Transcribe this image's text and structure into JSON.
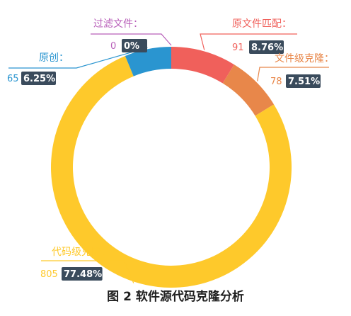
{
  "chart_data": {
    "type": "pie",
    "variant": "donut",
    "slices": [
      {
        "label": "原文件匹配：",
        "value": 91,
        "percent": "8.76%",
        "color": "#F0605B"
      },
      {
        "label": "文件级克隆：",
        "value": 78,
        "percent": "7.51%",
        "color": "#E8874A"
      },
      {
        "label": "代码级克隆：",
        "value": 805,
        "percent": "77.48%",
        "color": "#FEC92B"
      },
      {
        "label": "原创：",
        "value": 65,
        "percent": "6.25%",
        "color": "#2A95D0"
      },
      {
        "label": "过滤文件：",
        "value": 0,
        "percent": "0%",
        "color": "#B85FB9"
      }
    ]
  },
  "caption": "图 2 软件源代码克隆分析",
  "colors": {
    "badge_bg": "#3A4B5C",
    "leader_text_pink": "#B85FB9"
  }
}
